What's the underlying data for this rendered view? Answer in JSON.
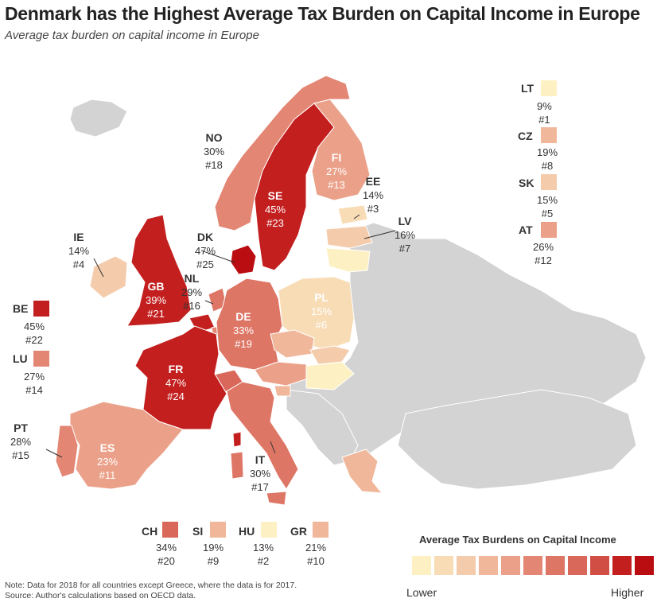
{
  "title": "Denmark has the Highest Average Tax Burden on Capital Income in Europe",
  "subtitle": "Average tax burden on capital income in Europe",
  "colors": {
    "base": "#d3d3d3",
    "scale": [
      "#fdf1c4",
      "#f8dcb6",
      "#f4cbab",
      "#f0b79a",
      "#eba189",
      "#e38674",
      "#de7666",
      "#d9685a",
      "#d04e44",
      "#c31f1f",
      "#b90d12"
    ]
  },
  "countries": {
    "NO": {
      "code": "NO",
      "pct": "30%",
      "rank": "#18"
    },
    "SE": {
      "code": "SE",
      "pct": "45%",
      "rank": "#23"
    },
    "FI": {
      "code": "FI",
      "pct": "27%",
      "rank": "#13"
    },
    "EE": {
      "code": "EE",
      "pct": "14%",
      "rank": "#3"
    },
    "LV": {
      "code": "LV",
      "pct": "16%",
      "rank": "#7"
    },
    "DK": {
      "code": "DK",
      "pct": "47%",
      "rank": "#25"
    },
    "IE": {
      "code": "IE",
      "pct": "14%",
      "rank": "#4"
    },
    "GB": {
      "code": "GB",
      "pct": "39%",
      "rank": "#21"
    },
    "NL": {
      "code": "NL",
      "pct": "29%",
      "rank": "#16"
    },
    "DE": {
      "code": "DE",
      "pct": "33%",
      "rank": "#19"
    },
    "PL": {
      "code": "PL",
      "pct": "15%",
      "rank": "#6"
    },
    "FR": {
      "code": "FR",
      "pct": "47%",
      "rank": "#24"
    },
    "ES": {
      "code": "ES",
      "pct": "23%",
      "rank": "#11"
    },
    "PT": {
      "code": "PT",
      "pct": "28%",
      "rank": "#15"
    },
    "IT": {
      "code": "IT",
      "pct": "30%",
      "rank": "#17"
    },
    "BE": {
      "code": "BE",
      "pct": "45%",
      "rank": "#22"
    },
    "LU": {
      "code": "LU",
      "pct": "27%",
      "rank": "#14"
    },
    "LT": {
      "code": "LT",
      "pct": "9%",
      "rank": "#1"
    },
    "CZ": {
      "code": "CZ",
      "pct": "19%",
      "rank": "#8"
    },
    "SK": {
      "code": "SK",
      "pct": "15%",
      "rank": "#5"
    },
    "AT": {
      "code": "AT",
      "pct": "26%",
      "rank": "#12"
    },
    "CH": {
      "code": "CH",
      "pct": "34%",
      "rank": "#20"
    },
    "SI": {
      "code": "SI",
      "pct": "19%",
      "rank": "#9"
    },
    "HU": {
      "code": "HU",
      "pct": "13%",
      "rank": "#2"
    },
    "GR": {
      "code": "GR",
      "pct": "21%",
      "rank": "#10"
    }
  },
  "legend": {
    "title": "Average Tax Burdens on Capital Income",
    "low": "Lower",
    "high": "Higher"
  },
  "note": {
    "line1": "Note: Data for 2018 for all countries except Greece, where the data is for 2017.",
    "line2": "Source: Author's calculations based on OECD data."
  }
}
